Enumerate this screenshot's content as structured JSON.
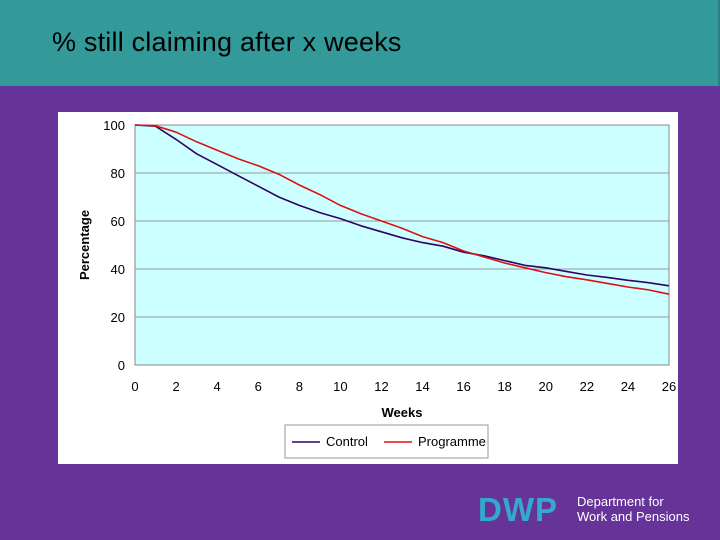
{
  "header": {
    "title": "% still claiming after x weeks"
  },
  "colors": {
    "header_bg": "#339999",
    "page_bg": "#663399",
    "plot_bg": "#ccffff",
    "control": "#330066",
    "programme": "#dd1111"
  },
  "chart_data": {
    "type": "line",
    "title": "",
    "xlabel": "Weeks",
    "ylabel": "Percentage",
    "xlim": [
      0,
      26
    ],
    "ylim": [
      0,
      100
    ],
    "xticks": [
      0,
      2,
      4,
      6,
      8,
      10,
      12,
      14,
      16,
      18,
      20,
      22,
      24,
      26
    ],
    "yticks": [
      0,
      20,
      40,
      60,
      80,
      100
    ],
    "grid": true,
    "legend": "bottom",
    "x": [
      0,
      1,
      2,
      3,
      4,
      5,
      6,
      7,
      8,
      9,
      10,
      11,
      12,
      13,
      14,
      15,
      16,
      17,
      18,
      19,
      20,
      21,
      22,
      23,
      24,
      25,
      26
    ],
    "series": [
      {
        "name": "Control",
        "color": "#330066",
        "values": [
          100,
          99.5,
          94,
          88,
          83.5,
          79,
          74.5,
          70,
          66.5,
          63.5,
          61,
          58,
          55.5,
          53,
          51,
          49.5,
          47,
          45.5,
          43.5,
          41.5,
          40.5,
          39,
          37.5,
          36.5,
          35.3,
          34.3,
          33
        ]
      },
      {
        "name": "Programme",
        "color": "#dd1111",
        "values": [
          100,
          99.7,
          97,
          93,
          89.5,
          86,
          83,
          79.5,
          75,
          71,
          66.5,
          63,
          60,
          57,
          53.5,
          51,
          47.5,
          45,
          42.5,
          40.5,
          38.5,
          36.8,
          35.5,
          34,
          32.5,
          31.3,
          29.5
        ]
      }
    ]
  },
  "logo": {
    "mark": "DWP",
    "line1": "Department for",
    "line2": "Work and Pensions"
  }
}
